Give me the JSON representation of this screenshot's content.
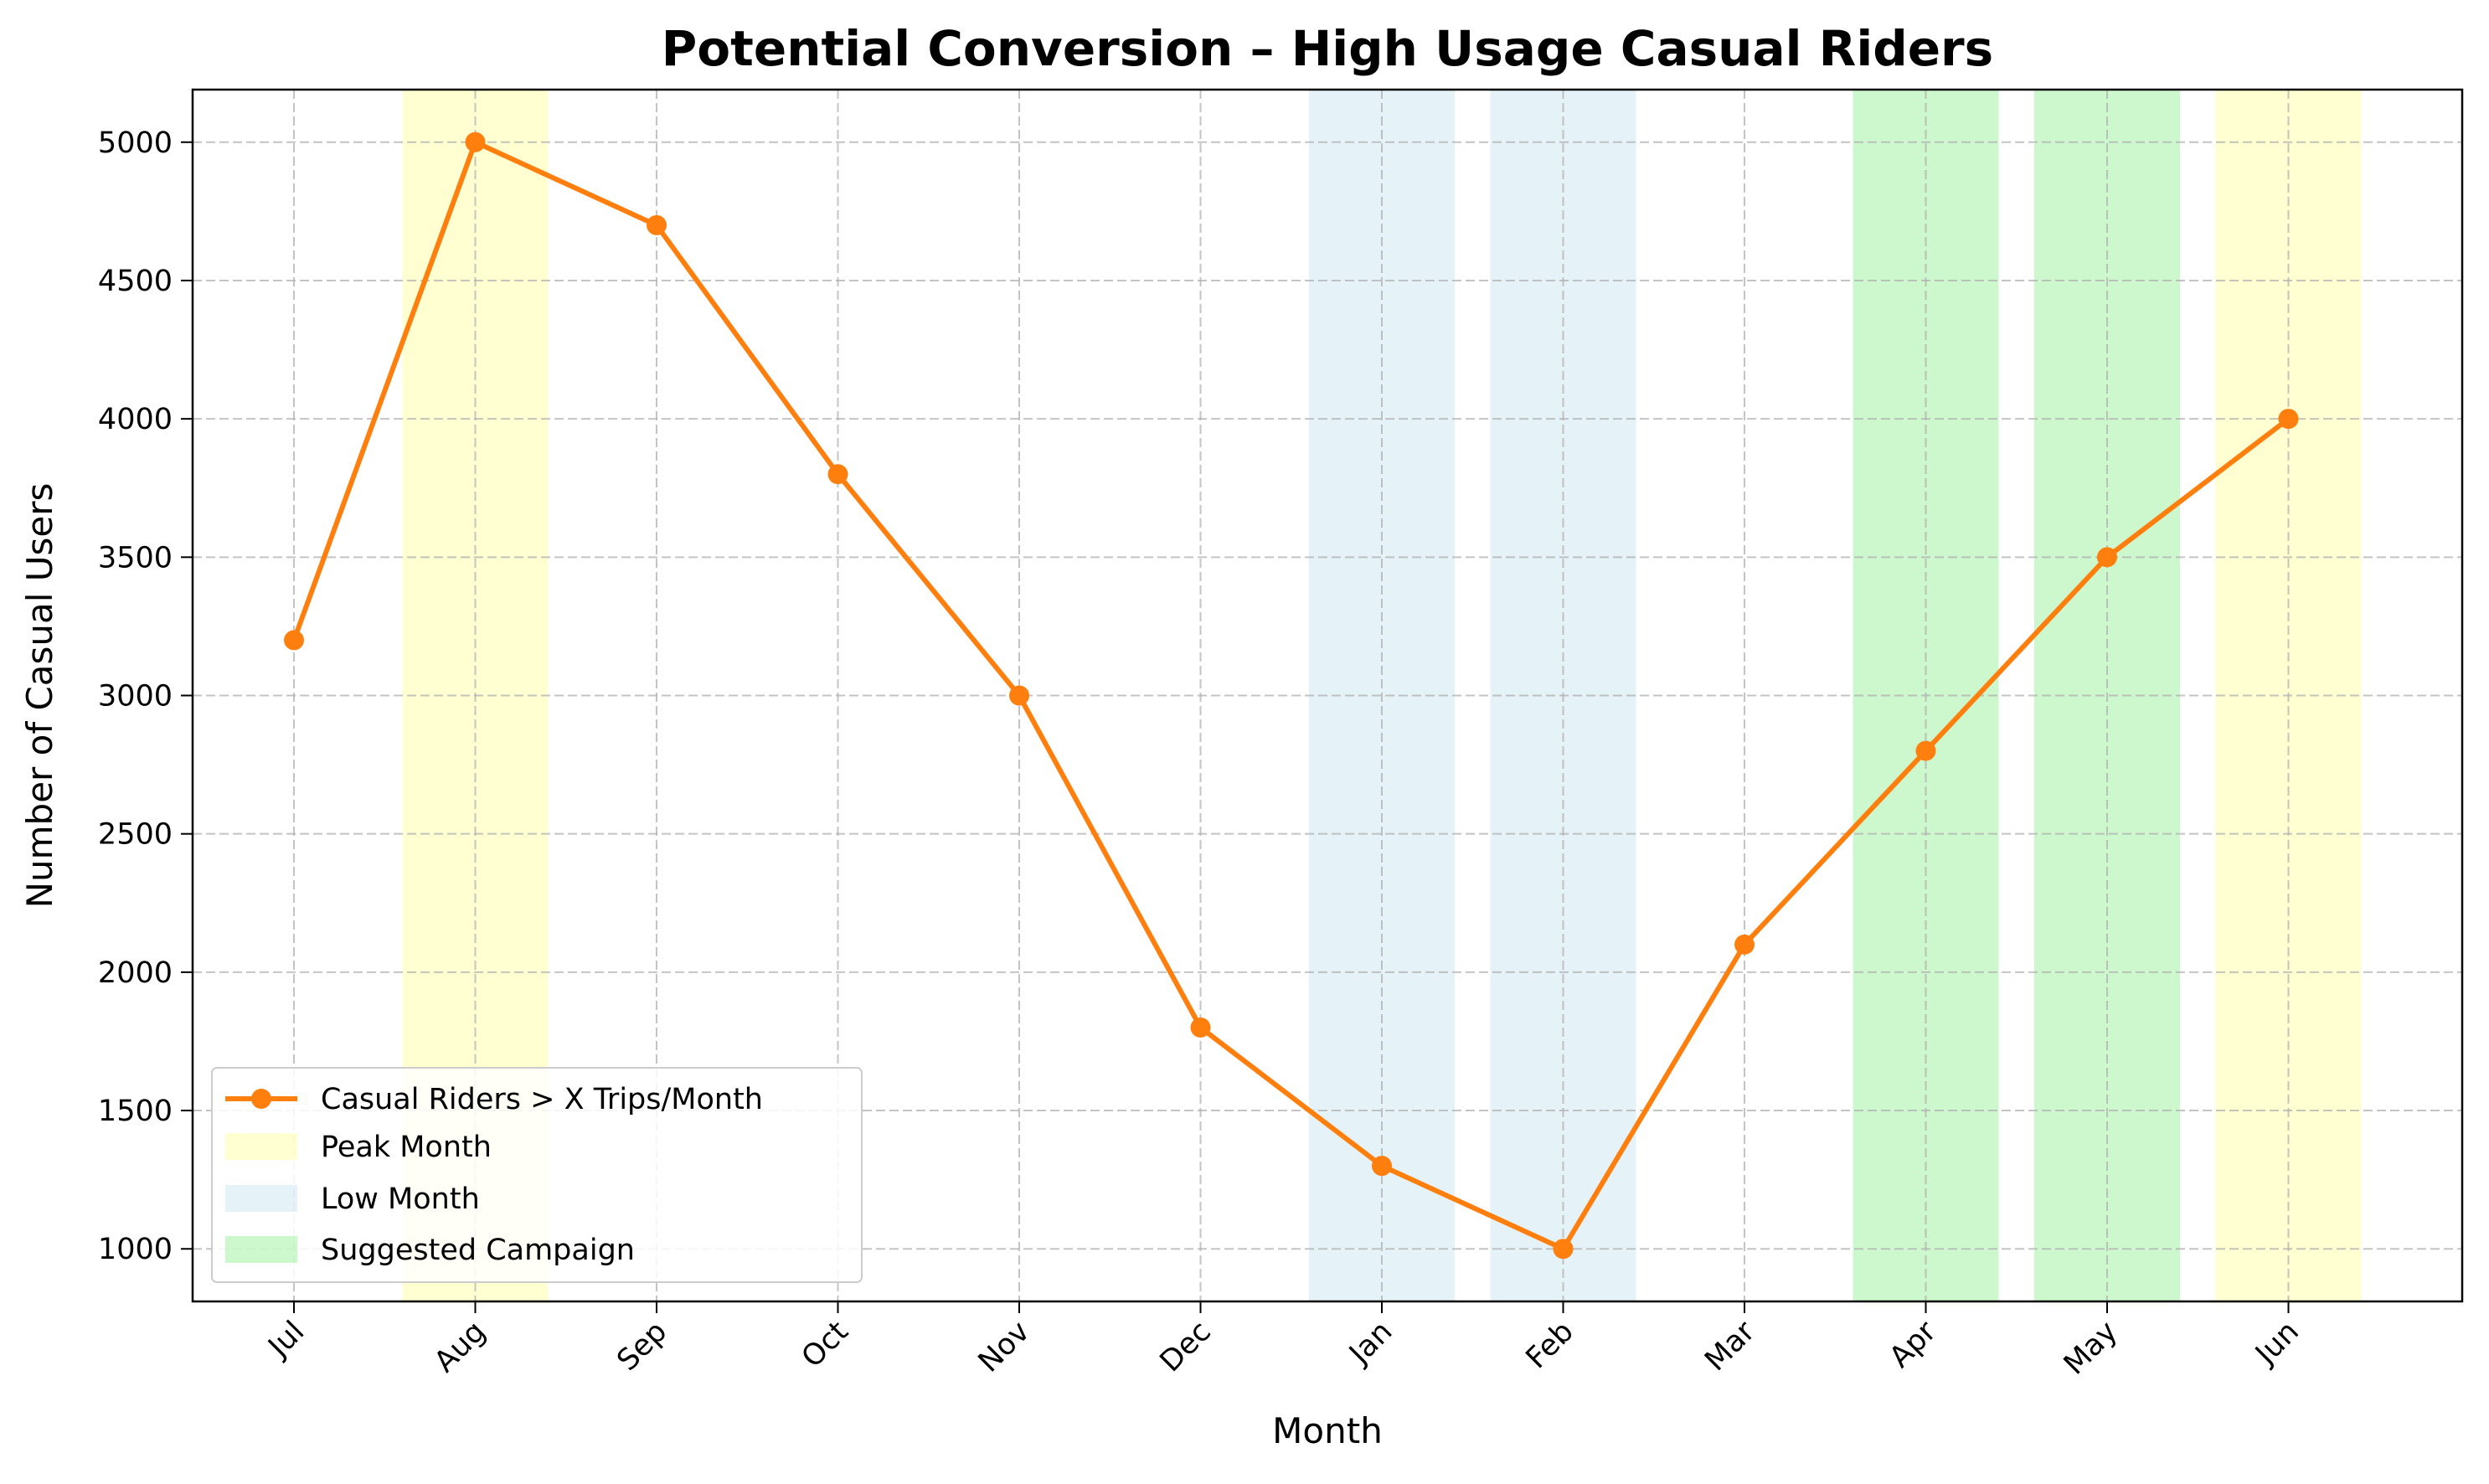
{
  "chart_data": {
    "type": "line",
    "title": "Potential Conversion – High Usage Casual Riders",
    "xlabel": "Month",
    "ylabel": "Number of Casual Users",
    "categories": [
      "Jul",
      "Aug",
      "Sep",
      "Oct",
      "Nov",
      "Dec",
      "Jan",
      "Feb",
      "Mar",
      "Apr",
      "May",
      "Jun"
    ],
    "series": [
      {
        "name": "Casual Riders > X Trips/Month",
        "values": [
          3200,
          5000,
          4700,
          3800,
          3000,
          1800,
          1300,
          1000,
          2100,
          2800,
          3500,
          4000
        ],
        "color": "#ff7f0e"
      }
    ],
    "ylim": [
      810,
      5190
    ],
    "yticks": [
      1000,
      1500,
      2000,
      2500,
      3000,
      3500,
      4000,
      4500,
      5000
    ],
    "grid": true,
    "legend_position": "lower-left",
    "highlights": [
      {
        "name": "Peak Month",
        "months": [
          "Aug",
          "Jun"
        ],
        "color": "#ffff99"
      },
      {
        "name": "Low Month",
        "months": [
          "Jan",
          "Feb"
        ],
        "color": "#add8e6"
      },
      {
        "name": "Suggested Campaign",
        "months": [
          "Apr",
          "May"
        ],
        "color": "#90ee90"
      }
    ]
  }
}
